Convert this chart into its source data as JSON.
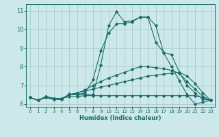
{
  "xlabel": "Humidex (Indice chaleur)",
  "bg_color": "#cde8e8",
  "grid_color": "#aacccc",
  "line_color": "#1a6b6b",
  "xlim": [
    -0.5,
    23.5
  ],
  "ylim": [
    5.85,
    11.35
  ],
  "xticks": [
    0,
    1,
    2,
    3,
    4,
    5,
    6,
    7,
    8,
    9,
    10,
    11,
    12,
    13,
    14,
    15,
    16,
    17,
    18,
    19,
    20,
    21,
    22,
    23
  ],
  "yticks": [
    6,
    7,
    8,
    9,
    10,
    11
  ],
  "series": [
    [
      6.35,
      6.2,
      6.35,
      6.25,
      6.25,
      6.55,
      6.5,
      6.5,
      6.5,
      8.1,
      10.2,
      10.95,
      10.4,
      10.45,
      10.65,
      10.65,
      10.2,
      8.75,
      8.65,
      7.7,
      7.0,
      6.6,
      6.25,
      6.2
    ],
    [
      6.35,
      6.2,
      6.35,
      6.25,
      6.25,
      6.5,
      6.5,
      6.6,
      7.3,
      8.85,
      9.8,
      10.3,
      10.3,
      10.4,
      10.65,
      10.65,
      9.3,
      8.75,
      8.0,
      7.25,
      6.5,
      6.0,
      6.1,
      6.2
    ],
    [
      6.35,
      6.2,
      6.4,
      6.3,
      6.3,
      6.4,
      6.4,
      6.45,
      6.45,
      6.45,
      6.45,
      6.45,
      6.45,
      6.45,
      6.45,
      6.45,
      6.45,
      6.45,
      6.45,
      6.45,
      6.45,
      6.45,
      6.35,
      6.2
    ],
    [
      6.35,
      6.2,
      6.4,
      6.3,
      6.3,
      6.5,
      6.6,
      6.7,
      6.8,
      6.9,
      7.0,
      7.1,
      7.2,
      7.3,
      7.4,
      7.5,
      7.55,
      7.6,
      7.65,
      7.7,
      7.5,
      7.1,
      6.6,
      6.2
    ],
    [
      6.35,
      6.2,
      6.4,
      6.3,
      6.3,
      6.5,
      6.6,
      6.75,
      7.0,
      7.2,
      7.4,
      7.55,
      7.7,
      7.85,
      8.0,
      8.0,
      7.95,
      7.9,
      7.8,
      7.65,
      7.2,
      6.8,
      6.4,
      6.2
    ]
  ]
}
